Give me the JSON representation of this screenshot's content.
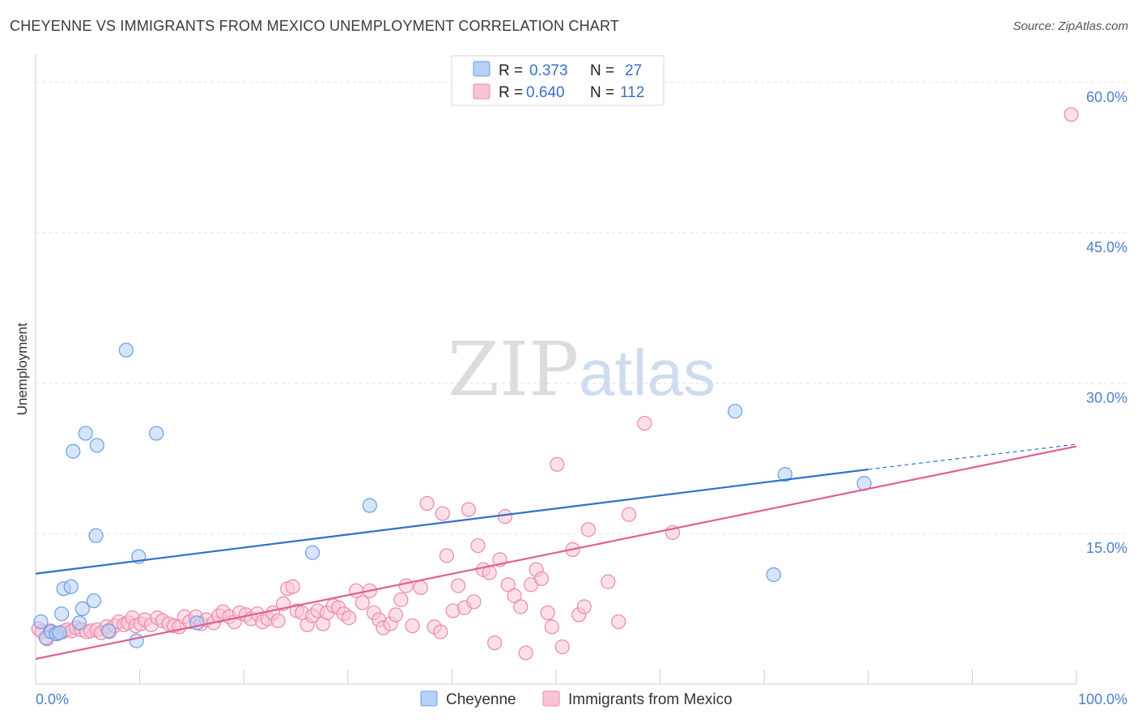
{
  "header": {
    "title": "CHEYENNE VS IMMIGRANTS FROM MEXICO UNEMPLOYMENT CORRELATION CHART",
    "source": "Source: ZipAtlas.com"
  },
  "watermark": {
    "zip": "ZIP",
    "atlas": "atlas"
  },
  "legend": {
    "r_label": "R =",
    "n_label": "N =",
    "series": [
      {
        "name": "Cheyenne",
        "r": "0.373",
        "n": "27",
        "fill": "#b7d0f5",
        "stroke": "#6a9ee8",
        "line": "#2f6fcf"
      },
      {
        "name": "Immigrants from Mexico",
        "r": "0.640",
        "n": "112",
        "fill": "#f9c4d5",
        "stroke": "#ea8aaa",
        "line": "#e0608f"
      }
    ]
  },
  "chart_data": {
    "type": "scatter",
    "title": "CHEYENNE VS IMMIGRANTS FROM MEXICO UNEMPLOYMENT CORRELATION CHART",
    "xlabel": "",
    "ylabel": "Unemployment",
    "xlim": [
      0,
      100
    ],
    "ylim": [
      0,
      62
    ],
    "x_tick_labels": [
      "0.0%",
      "100.0%"
    ],
    "y_ticks": [
      15,
      30,
      45,
      60
    ],
    "y_tick_labels": [
      "15.0%",
      "30.0%",
      "45.0%",
      "60.0%"
    ],
    "grid": true,
    "series": [
      {
        "name": "Cheyenne",
        "points": [
          [
            0.5,
            6.2
          ],
          [
            1.0,
            4.6
          ],
          [
            1.5,
            5.2
          ],
          [
            2.0,
            5.0
          ],
          [
            2.3,
            5.1
          ],
          [
            2.5,
            7.0
          ],
          [
            2.7,
            9.5
          ],
          [
            3.4,
            9.7
          ],
          [
            3.6,
            23.2
          ],
          [
            4.2,
            6.1
          ],
          [
            4.5,
            7.5
          ],
          [
            4.8,
            25.0
          ],
          [
            5.6,
            8.3
          ],
          [
            5.8,
            14.8
          ],
          [
            5.9,
            23.8
          ],
          [
            7.0,
            5.3
          ],
          [
            8.7,
            33.3
          ],
          [
            9.7,
            4.3
          ],
          [
            9.9,
            12.7
          ],
          [
            11.6,
            25.0
          ],
          [
            15.5,
            6.1
          ],
          [
            26.6,
            13.1
          ],
          [
            32.1,
            17.8
          ],
          [
            67.2,
            27.2
          ],
          [
            70.9,
            10.9
          ],
          [
            72.0,
            20.9
          ],
          [
            79.6,
            20.0
          ]
        ],
        "trend": {
          "x0": 0,
          "y0": 11.0,
          "x1": 80,
          "y1": 21.4,
          "dashed_to_x": 100,
          "dashed_to_y": 23.9
        }
      },
      {
        "name": "Immigrants from Mexico",
        "points": [
          [
            0.3,
            5.5
          ],
          [
            0.6,
            5.2
          ],
          [
            1.1,
            4.5
          ],
          [
            1.4,
            5.3
          ],
          [
            1.9,
            5.1
          ],
          [
            2.1,
            5.0
          ],
          [
            2.6,
            5.2
          ],
          [
            3.0,
            5.4
          ],
          [
            3.5,
            5.3
          ],
          [
            3.9,
            5.6
          ],
          [
            4.4,
            5.4
          ],
          [
            4.9,
            5.2
          ],
          [
            5.3,
            5.3
          ],
          [
            5.9,
            5.4
          ],
          [
            6.3,
            5.1
          ],
          [
            6.8,
            5.7
          ],
          [
            7.1,
            5.2
          ],
          [
            7.6,
            5.8
          ],
          [
            8.0,
            6.2
          ],
          [
            8.5,
            5.9
          ],
          [
            8.9,
            6.1
          ],
          [
            9.3,
            6.6
          ],
          [
            9.6,
            5.8
          ],
          [
            10.1,
            6.0
          ],
          [
            10.5,
            6.4
          ],
          [
            11.1,
            5.9
          ],
          [
            11.7,
            6.6
          ],
          [
            12.2,
            6.3
          ],
          [
            12.8,
            6.0
          ],
          [
            13.3,
            5.8
          ],
          [
            13.8,
            5.7
          ],
          [
            14.3,
            6.7
          ],
          [
            14.8,
            6.2
          ],
          [
            15.4,
            6.7
          ],
          [
            15.9,
            6.0
          ],
          [
            16.4,
            6.4
          ],
          [
            17.1,
            6.1
          ],
          [
            17.6,
            6.8
          ],
          [
            18.0,
            7.2
          ],
          [
            18.6,
            6.7
          ],
          [
            19.1,
            6.2
          ],
          [
            19.6,
            7.1
          ],
          [
            20.2,
            6.9
          ],
          [
            20.7,
            6.5
          ],
          [
            21.3,
            7.0
          ],
          [
            21.8,
            6.2
          ],
          [
            22.3,
            6.5
          ],
          [
            22.8,
            7.1
          ],
          [
            23.3,
            6.3
          ],
          [
            23.8,
            8.0
          ],
          [
            24.2,
            9.5
          ],
          [
            24.7,
            9.7
          ],
          [
            25.1,
            7.3
          ],
          [
            25.6,
            7.1
          ],
          [
            26.1,
            5.9
          ],
          [
            26.6,
            6.8
          ],
          [
            27.1,
            7.3
          ],
          [
            27.6,
            6.0
          ],
          [
            28.0,
            7.1
          ],
          [
            28.6,
            7.8
          ],
          [
            29.1,
            7.6
          ],
          [
            29.6,
            7.0
          ],
          [
            30.1,
            6.6
          ],
          [
            30.8,
            9.3
          ],
          [
            31.4,
            8.1
          ],
          [
            32.1,
            9.3
          ],
          [
            32.5,
            7.1
          ],
          [
            33.0,
            6.4
          ],
          [
            33.4,
            5.6
          ],
          [
            34.1,
            6.0
          ],
          [
            34.6,
            6.9
          ],
          [
            35.1,
            8.4
          ],
          [
            35.6,
            9.8
          ],
          [
            36.2,
            5.8
          ],
          [
            37.0,
            9.6
          ],
          [
            37.6,
            18.0
          ],
          [
            38.3,
            5.7
          ],
          [
            38.9,
            5.2
          ],
          [
            39.1,
            17.0
          ],
          [
            39.5,
            12.8
          ],
          [
            40.1,
            7.3
          ],
          [
            40.6,
            9.8
          ],
          [
            41.2,
            7.6
          ],
          [
            41.6,
            17.4
          ],
          [
            42.1,
            8.2
          ],
          [
            42.5,
            13.8
          ],
          [
            43.0,
            11.4
          ],
          [
            43.6,
            11.1
          ],
          [
            44.1,
            4.1
          ],
          [
            44.6,
            12.4
          ],
          [
            45.1,
            16.7
          ],
          [
            45.4,
            9.9
          ],
          [
            46.0,
            8.8
          ],
          [
            46.6,
            7.7
          ],
          [
            47.1,
            3.1
          ],
          [
            47.6,
            9.9
          ],
          [
            48.1,
            11.4
          ],
          [
            48.6,
            10.5
          ],
          [
            49.2,
            7.1
          ],
          [
            49.6,
            5.7
          ],
          [
            50.1,
            21.9
          ],
          [
            50.6,
            3.7
          ],
          [
            51.6,
            13.4
          ],
          [
            52.2,
            6.9
          ],
          [
            52.7,
            7.7
          ],
          [
            53.1,
            15.4
          ],
          [
            55.0,
            10.2
          ],
          [
            56.0,
            6.2
          ],
          [
            57.0,
            16.9
          ],
          [
            58.5,
            26.0
          ],
          [
            61.2,
            15.1
          ],
          [
            99.5,
            56.8
          ]
        ],
        "trend": {
          "x0": 0,
          "y0": 2.5,
          "x1": 100,
          "y1": 23.7
        }
      }
    ]
  }
}
